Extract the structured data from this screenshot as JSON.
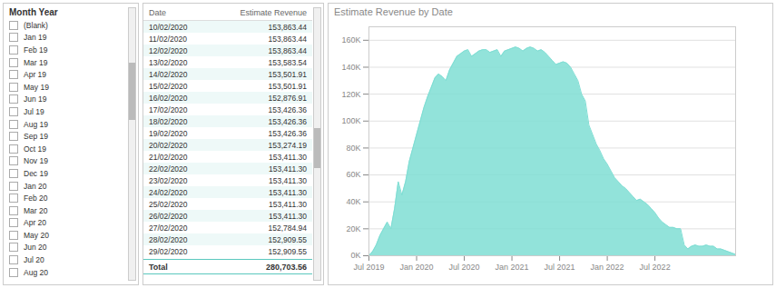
{
  "chart_data": [
    {
      "type": "slicer",
      "title": "Month Year",
      "categories": [
        "(Blank)",
        "Jan 19",
        "Feb 19",
        "Mar 19",
        "Apr 19",
        "May 19",
        "Jun 19",
        "Jul 19",
        "Aug 19",
        "Sep 19",
        "Oct 19",
        "Nov 19",
        "Dec 19",
        "Jan 20",
        "Feb 20",
        "Mar 20",
        "Apr 20",
        "May 20",
        "Jun 20",
        "Jul 20",
        "Aug 20"
      ]
    },
    {
      "type": "table",
      "columns": [
        "Date",
        "Estimate Revenue"
      ],
      "rows": [
        [
          "10/02/2020",
          "153,863.44"
        ],
        [
          "11/02/2020",
          "153,863.44"
        ],
        [
          "12/02/2020",
          "153,863.44"
        ],
        [
          "13/02/2020",
          "153,583.54"
        ],
        [
          "14/02/2020",
          "153,501.91"
        ],
        [
          "15/02/2020",
          "153,501.91"
        ],
        [
          "16/02/2020",
          "152,876.91"
        ],
        [
          "17/02/2020",
          "153,426.36"
        ],
        [
          "18/02/2020",
          "153,426.36"
        ],
        [
          "19/02/2020",
          "153,426.36"
        ],
        [
          "20/02/2020",
          "153,274.19"
        ],
        [
          "21/02/2020",
          "153,411.30"
        ],
        [
          "22/02/2020",
          "153,411.30"
        ],
        [
          "23/02/2020",
          "153,411.30"
        ],
        [
          "24/02/2020",
          "153,411.30"
        ],
        [
          "25/02/2020",
          "153,411.30"
        ],
        [
          "26/02/2020",
          "153,411.30"
        ],
        [
          "27/02/2020",
          "152,784.94"
        ],
        [
          "28/02/2020",
          "152,909.55"
        ],
        [
          "29/02/2020",
          "152,909.55"
        ]
      ],
      "total": [
        "Total",
        "280,703.56"
      ]
    },
    {
      "type": "area",
      "title": "Estimate Revenue by Date",
      "color": "#7FDED4",
      "x": [
        0,
        1,
        2,
        3,
        4,
        5,
        6,
        7,
        8,
        9,
        10,
        11,
        12,
        13,
        14,
        15,
        16,
        17,
        18,
        19,
        20,
        21,
        22,
        23,
        24,
        25,
        26,
        27,
        28,
        29,
        30,
        31,
        32,
        33,
        34,
        35,
        36,
        37,
        38,
        39,
        40,
        41,
        42,
        43,
        44,
        45,
        46,
        47,
        48,
        49,
        50,
        51,
        52,
        53,
        54,
        55,
        56,
        57,
        58,
        59,
        60,
        61,
        62,
        63,
        64,
        65,
        66,
        67,
        68,
        69,
        70,
        71,
        72,
        73,
        74,
        75,
        76,
        77,
        78,
        79,
        80,
        81,
        82,
        83,
        84,
        85,
        86,
        87,
        88,
        89,
        90,
        91,
        92,
        93,
        94,
        95,
        96,
        97,
        98,
        99,
        100
      ],
      "values": [
        0,
        3000,
        8000,
        15000,
        20000,
        25000,
        20000,
        35000,
        55000,
        45000,
        55000,
        70000,
        80000,
        90000,
        100000,
        110000,
        118000,
        125000,
        132000,
        135000,
        133000,
        130000,
        138000,
        143000,
        148000,
        150000,
        152000,
        153000,
        148000,
        150000,
        152000,
        153000,
        153000,
        151000,
        152000,
        153000,
        148000,
        152000,
        153000,
        154000,
        155000,
        154000,
        152000,
        154000,
        155000,
        154000,
        152000,
        153000,
        151000,
        148000,
        145000,
        142000,
        143000,
        144000,
        143000,
        140000,
        135000,
        130000,
        120000,
        115000,
        97000,
        90000,
        83000,
        78000,
        72000,
        68000,
        63000,
        58000,
        55000,
        52000,
        50000,
        47000,
        44000,
        41000,
        42000,
        40000,
        38000,
        35000,
        32000,
        28000,
        25000,
        23000,
        21000,
        21000,
        20000,
        20000,
        8000,
        5000,
        7000,
        8000,
        7000,
        7000,
        8000,
        7000,
        7000,
        5000,
        5000,
        4000,
        3000,
        2000,
        1000
      ],
      "xlim": [
        0,
        100
      ],
      "xticks": [
        {
          "value": 0,
          "label": "Jul 2019"
        },
        {
          "value": 13,
          "label": "Jan 2020"
        },
        {
          "value": 26,
          "label": "Jul 2020"
        },
        {
          "value": 39,
          "label": "Jan 2021"
        },
        {
          "value": 52,
          "label": "Jul 2021"
        },
        {
          "value": 65,
          "label": "Jan 2022"
        },
        {
          "value": 78,
          "label": "Jul 2022"
        }
      ],
      "ylim": [
        0,
        170000
      ],
      "yticks": [
        {
          "value": 0,
          "label": "0K"
        },
        {
          "value": 20000,
          "label": "20K"
        },
        {
          "value": 40000,
          "label": "40K"
        },
        {
          "value": 60000,
          "label": "60K"
        },
        {
          "value": 80000,
          "label": "80K"
        },
        {
          "value": 100000,
          "label": "100K"
        },
        {
          "value": 120000,
          "label": "120K"
        },
        {
          "value": 140000,
          "label": "140K"
        },
        {
          "value": 160000,
          "label": "160K"
        }
      ],
      "grid": true
    }
  ]
}
